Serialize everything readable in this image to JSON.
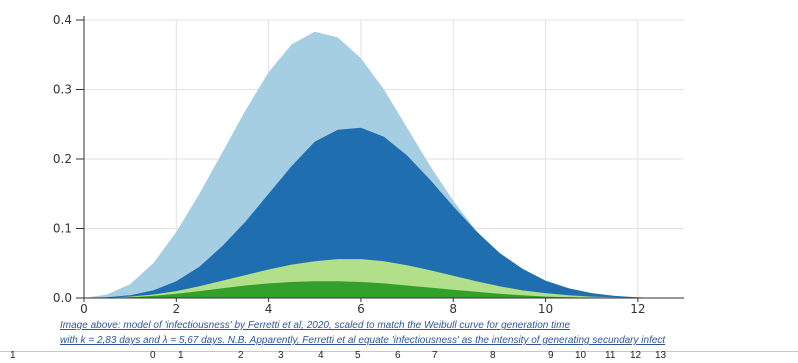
{
  "chart_data": {
    "type": "area",
    "title": "",
    "xlabel": "",
    "ylabel": "",
    "xlim": [
      0,
      13
    ],
    "ylim": [
      0,
      0.4
    ],
    "xticks": [
      "0",
      "2",
      "4",
      "6",
      "8",
      "10",
      "12"
    ],
    "yticks": [
      "0.0",
      "0.1",
      "0.2",
      "0.3",
      "0.4"
    ],
    "grid": true,
    "x": [
      0,
      0.5,
      1,
      1.5,
      2,
      2.5,
      3,
      3.5,
      4,
      4.5,
      5,
      5.5,
      6,
      6.5,
      7,
      7.5,
      8,
      8.5,
      9,
      9.5,
      10,
      10.5,
      11,
      11.5,
      12,
      12.5
    ],
    "series": [
      {
        "color": "#a6cee3",
        "values": [
          0,
          0.005,
          0.02,
          0.05,
          0.095,
          0.15,
          0.21,
          0.27,
          0.325,
          0.365,
          0.383,
          0.375,
          0.345,
          0.3,
          0.245,
          0.19,
          0.14,
          0.097,
          0.063,
          0.038,
          0.021,
          0.011,
          0.005,
          0.002,
          0.0005,
          0
        ]
      },
      {
        "color": "#1f6fb0",
        "values": [
          0,
          0.001,
          0.004,
          0.011,
          0.024,
          0.045,
          0.075,
          0.11,
          0.15,
          0.19,
          0.225,
          0.242,
          0.245,
          0.232,
          0.205,
          0.17,
          0.132,
          0.096,
          0.065,
          0.042,
          0.025,
          0.014,
          0.007,
          0.003,
          0.001,
          0
        ]
      },
      {
        "color": "#b2df8a",
        "values": [
          0,
          0.0005,
          0.002,
          0.005,
          0.01,
          0.017,
          0.025,
          0.033,
          0.041,
          0.048,
          0.053,
          0.056,
          0.056,
          0.053,
          0.047,
          0.04,
          0.032,
          0.024,
          0.017,
          0.011,
          0.007,
          0.004,
          0.002,
          0.001,
          0.0003,
          0
        ]
      },
      {
        "color": "#33a02c",
        "values": [
          0,
          0.0003,
          0.001,
          0.003,
          0.006,
          0.01,
          0.014,
          0.018,
          0.021,
          0.023,
          0.024,
          0.024,
          0.023,
          0.021,
          0.018,
          0.015,
          0.012,
          0.009,
          0.006,
          0.004,
          0.002,
          0.001,
          0.0005,
          0.0002,
          0,
          0
        ]
      }
    ]
  },
  "caption": {
    "line1": "Image above: model of 'infectiousness' by Ferretti et al, 2020, scaled to match the Weibull curve for generation time",
    "line2": "with k = 2,83 days and λ = 5,67 days. N.B. Apparently, Ferretti et al equate 'infectiousness' as the intensity of generating secundary infect"
  },
  "row_strip": [
    "1",
    "0",
    "1",
    "2",
    "3",
    "4",
    "5",
    "6",
    "7",
    "8",
    "9",
    "10",
    "11",
    "12",
    "13"
  ]
}
